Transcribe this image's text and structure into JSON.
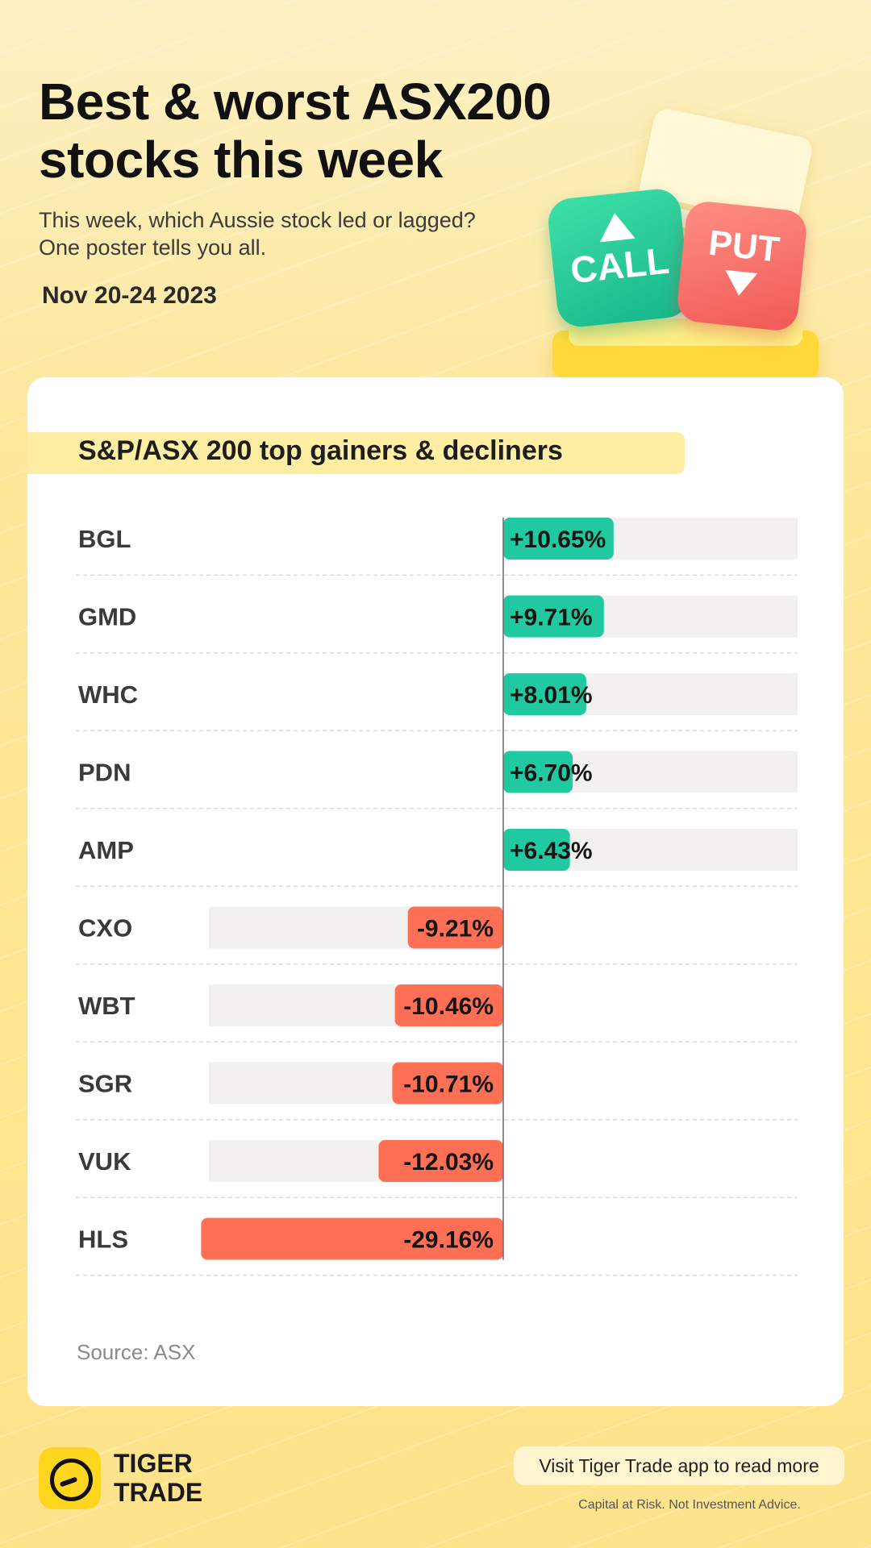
{
  "header": {
    "title_line1": "Best & worst ASX200",
    "title_line2": "stocks this week",
    "subtitle_line1": "This week, which Aussie stock led or lagged?",
    "subtitle_line2": "One poster tells you all.",
    "date": "Nov 20-24 2023"
  },
  "illustration": {
    "call_label": "CALL",
    "put_label": "PUT"
  },
  "chart_data": {
    "type": "bar",
    "orientation": "horizontal-diverging",
    "title": "S&P/ASX 200 top gainers & decliners",
    "categories": [
      "BGL",
      "GMD",
      "WHC",
      "PDN",
      "AMP",
      "CXO",
      "WBT",
      "SGR",
      "VUK",
      "HLS"
    ],
    "values": [
      10.65,
      9.71,
      8.01,
      6.7,
      6.43,
      -9.21,
      -10.46,
      -10.71,
      -12.03,
      -29.16
    ],
    "labels": [
      "+10.65%",
      "+9.71%",
      "+8.01%",
      "+6.70%",
      "+6.43%",
      "-9.21%",
      "-10.46%",
      "-10.71%",
      "-12.03%",
      "-29.16%"
    ],
    "unit": "%",
    "xlim": [
      -30,
      30
    ],
    "colors": {
      "positive": "#20c9a0",
      "negative": "#fd7055",
      "track": "#f2f1f0"
    }
  },
  "source": "Source: ASX",
  "footer": {
    "brand_line1": "TIGER",
    "brand_line2": "TRADE",
    "cta": "Visit Tiger Trade app to read more",
    "disclaimer": "Capital at Risk. Not Investment Advice."
  }
}
